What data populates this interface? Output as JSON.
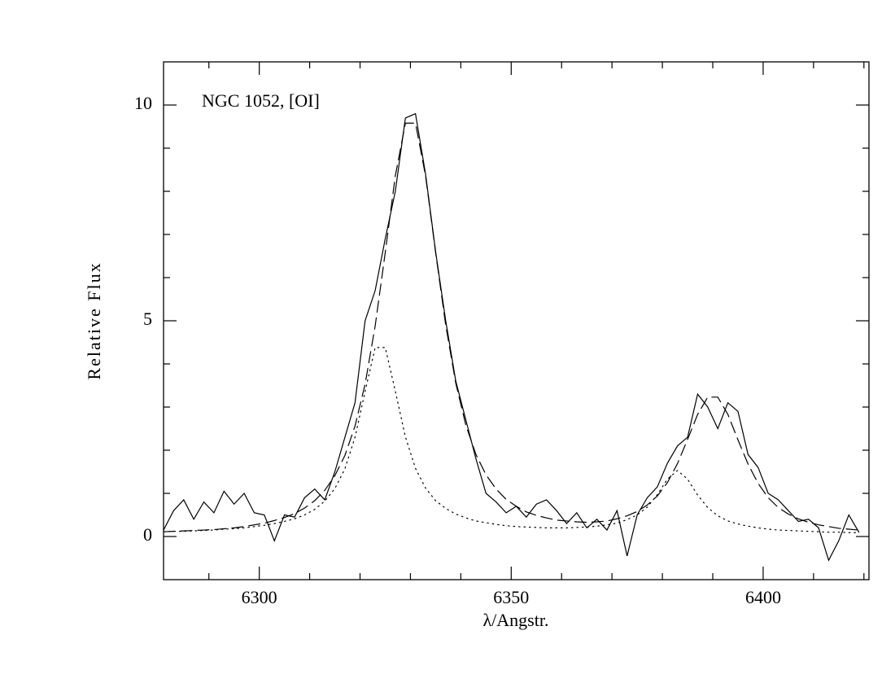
{
  "chart_data": {
    "type": "line",
    "annotation": "NGC 1052, [OI]",
    "xlabel": "λ/Angstr.",
    "ylabel": "Relative Flux",
    "xlim": [
      6281,
      6421
    ],
    "ylim": [
      -1,
      11
    ],
    "xticks": [
      6300,
      6350,
      6400
    ],
    "xminorticks": [
      6290,
      6310,
      6320,
      6330,
      6340,
      6360,
      6370,
      6380,
      6390,
      6410,
      6420
    ],
    "yticks": [
      0,
      5,
      10
    ],
    "yminorticks": [
      1,
      2,
      3,
      4,
      6,
      7,
      8,
      9
    ],
    "x": [
      6281,
      6283,
      6285,
      6287,
      6289,
      6291,
      6293,
      6295,
      6297,
      6299,
      6301,
      6303,
      6305,
      6307,
      6309,
      6311,
      6313,
      6315,
      6317,
      6319,
      6321,
      6323,
      6325,
      6327,
      6329,
      6331,
      6333,
      6335,
      6337,
      6339,
      6341,
      6343,
      6345,
      6347,
      6349,
      6351,
      6353,
      6355,
      6357,
      6359,
      6361,
      6363,
      6365,
      6367,
      6369,
      6371,
      6373,
      6375,
      6377,
      6379,
      6381,
      6383,
      6385,
      6387,
      6389,
      6391,
      6393,
      6395,
      6397,
      6399,
      6401,
      6403,
      6405,
      6407,
      6409,
      6411,
      6413,
      6415,
      6417,
      6419
    ],
    "series": [
      {
        "color": "#000000",
        "style": "solid",
        "values": [
          0.15,
          0.6,
          0.85,
          0.4,
          0.8,
          0.55,
          1.05,
          0.75,
          1.0,
          0.55,
          0.5,
          -0.1,
          0.5,
          0.45,
          0.9,
          1.1,
          0.85,
          1.5,
          2.3,
          3.1,
          5.0,
          5.7,
          6.9,
          8.0,
          9.7,
          9.8,
          8.4,
          6.6,
          5.0,
          3.6,
          2.7,
          1.8,
          1.0,
          0.8,
          0.55,
          0.7,
          0.45,
          0.75,
          0.85,
          0.6,
          0.3,
          0.55,
          0.2,
          0.4,
          0.15,
          0.6,
          -0.45,
          0.5,
          0.9,
          1.15,
          1.7,
          2.1,
          2.3,
          3.3,
          3.0,
          2.5,
          3.1,
          2.9,
          1.9,
          1.6,
          1.0,
          0.85,
          0.6,
          0.35,
          0.4,
          0.2,
          -0.55,
          -0.1,
          0.5,
          0.1
        ]
      },
      {
        "color": "#000000",
        "style": "dashed",
        "values": [
          0.11,
          0.12,
          0.13,
          0.14,
          0.15,
          0.16,
          0.18,
          0.2,
          0.23,
          0.27,
          0.31,
          0.37,
          0.44,
          0.53,
          0.66,
          0.83,
          1.07,
          1.41,
          1.88,
          2.56,
          3.53,
          4.88,
          6.58,
          8.36,
          9.58,
          9.58,
          8.36,
          6.58,
          4.9,
          3.55,
          2.58,
          1.9,
          1.43,
          1.1,
          0.86,
          0.7,
          0.57,
          0.49,
          0.43,
          0.38,
          0.36,
          0.34,
          0.33,
          0.34,
          0.36,
          0.41,
          0.48,
          0.58,
          0.73,
          0.94,
          1.25,
          1.69,
          2.25,
          2.83,
          3.23,
          3.23,
          2.83,
          2.24,
          1.68,
          1.23,
          0.9,
          0.67,
          0.52,
          0.41,
          0.33,
          0.27,
          0.23,
          0.19,
          0.17,
          0.15
        ]
      },
      {
        "color": "#000000",
        "style": "dotted",
        "values": [
          0.11,
          0.12,
          0.12,
          0.13,
          0.14,
          0.15,
          0.17,
          0.18,
          0.2,
          0.23,
          0.26,
          0.3,
          0.35,
          0.41,
          0.5,
          0.63,
          0.82,
          1.11,
          1.57,
          2.3,
          3.36,
          4.38,
          4.38,
          3.37,
          2.31,
          1.58,
          1.12,
          0.83,
          0.65,
          0.52,
          0.43,
          0.36,
          0.32,
          0.28,
          0.25,
          0.23,
          0.22,
          0.21,
          0.2,
          0.2,
          0.2,
          0.21,
          0.22,
          0.24,
          0.27,
          0.31,
          0.39,
          0.5,
          0.68,
          0.97,
          1.33,
          1.53,
          1.33,
          0.96,
          0.67,
          0.48,
          0.36,
          0.29,
          0.24,
          0.2,
          0.17,
          0.15,
          0.14,
          0.13,
          0.12,
          0.11,
          0.1,
          0.1,
          0.09,
          0.09
        ]
      }
    ]
  }
}
